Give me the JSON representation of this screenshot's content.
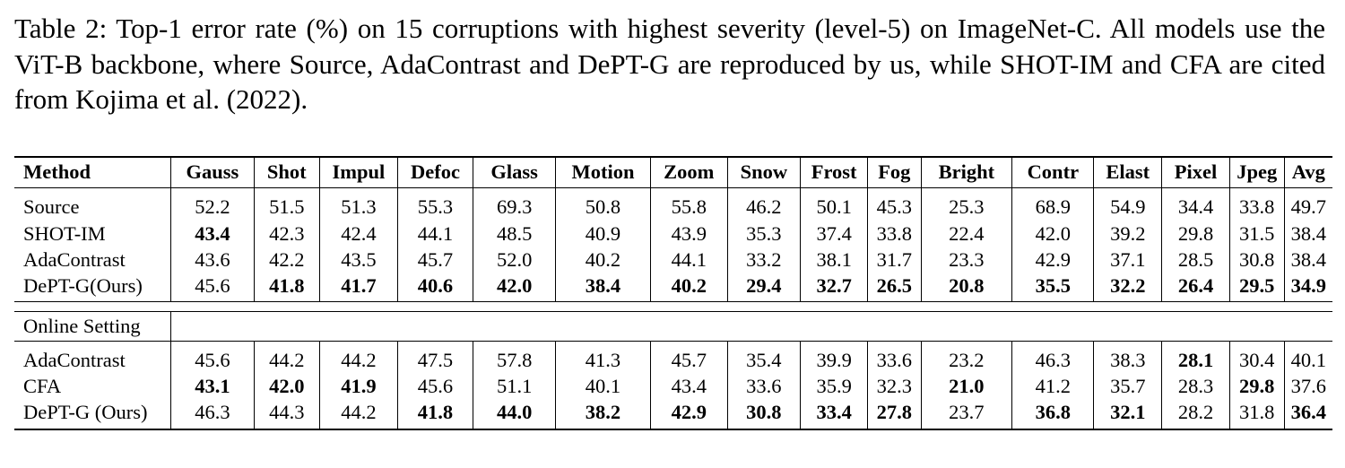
{
  "caption": "Table 2: Top-1 error rate (%) on 15 corruptions with highest severity (level-5) on ImageNet-C. All models use the ViT-B backbone, where Source, AdaContrast and DePT-G are reproduced by us, while SHOT-IM and CFA are cited from Kojima et al. (2022).",
  "table": {
    "headers": [
      "Method",
      "Gauss",
      "Shot",
      "Impul",
      "Defoc",
      "Glass",
      "Motion",
      "Zoom",
      "Snow",
      "Frost",
      "Fog",
      "Bright",
      "Contr",
      "Elast",
      "Pixel",
      "Jpeg",
      "Avg"
    ],
    "offline_rows": [
      {
        "method": "Source",
        "values": [
          "52.2",
          "51.5",
          "51.3",
          "55.3",
          "69.3",
          "50.8",
          "55.8",
          "46.2",
          "50.1",
          "45.3",
          "25.3",
          "68.9",
          "54.9",
          "34.4",
          "33.8",
          "49.7"
        ],
        "bold": []
      },
      {
        "method": "SHOT-IM",
        "values": [
          "43.4",
          "42.3",
          "42.4",
          "44.1",
          "48.5",
          "40.9",
          "43.9",
          "35.3",
          "37.4",
          "33.8",
          "22.4",
          "42.0",
          "39.2",
          "29.8",
          "31.5",
          "38.4"
        ],
        "bold": [
          0
        ]
      },
      {
        "method": "AdaContrast",
        "values": [
          "43.6",
          "42.2",
          "43.5",
          "45.7",
          "52.0",
          "40.2",
          "44.1",
          "33.2",
          "38.1",
          "31.7",
          "23.3",
          "42.9",
          "37.1",
          "28.5",
          "30.8",
          "38.4"
        ],
        "bold": []
      },
      {
        "method": "DePT-G(Ours)",
        "values": [
          "45.6",
          "41.8",
          "41.7",
          "40.6",
          "42.0",
          "38.4",
          "40.2",
          "29.4",
          "32.7",
          "26.5",
          "20.8",
          "35.5",
          "32.2",
          "26.4",
          "29.5",
          "34.9"
        ],
        "bold": [
          1,
          2,
          3,
          4,
          5,
          6,
          7,
          8,
          9,
          10,
          11,
          12,
          13,
          14,
          15
        ]
      }
    ],
    "online_label": "Online Setting",
    "online_rows": [
      {
        "method": "AdaContrast",
        "values": [
          "45.6",
          "44.2",
          "44.2",
          "47.5",
          "57.8",
          "41.3",
          "45.7",
          "35.4",
          "39.9",
          "33.6",
          "23.2",
          "46.3",
          "38.3",
          "28.1",
          "30.4",
          "40.1"
        ],
        "bold": [
          13
        ]
      },
      {
        "method": "CFA",
        "values": [
          "43.1",
          "42.0",
          "41.9",
          "45.6",
          "51.1",
          "40.1",
          "43.4",
          "33.6",
          "35.9",
          "32.3",
          "21.0",
          "41.2",
          "35.7",
          "28.3",
          "29.8",
          "37.6"
        ],
        "bold": [
          0,
          1,
          2,
          10,
          14
        ]
      },
      {
        "method": "DePT-G (Ours)",
        "values": [
          "46.3",
          "44.3",
          "44.2",
          "41.8",
          "44.0",
          "38.2",
          "42.9",
          "30.8",
          "33.4",
          "27.8",
          "23.7",
          "36.8",
          "32.1",
          "28.2",
          "31.8",
          "36.4"
        ],
        "bold": [
          3,
          4,
          5,
          6,
          7,
          8,
          9,
          11,
          12,
          15
        ]
      }
    ]
  }
}
